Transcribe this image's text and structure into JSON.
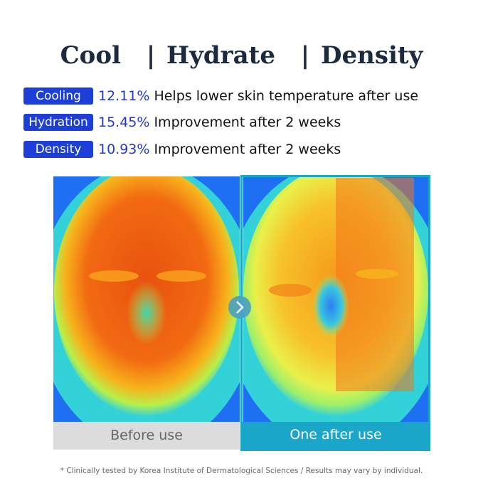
{
  "header": {
    "title": [
      "Cool",
      "| Hydrate",
      "| Density"
    ]
  },
  "claims": [
    {
      "badge": "Cooling",
      "value": "12.11%",
      "text": "Helps lower skin temperature after use"
    },
    {
      "badge": "Hydration",
      "value": "15.45%",
      "text": "Improvement after 2 weeks"
    },
    {
      "badge": "Density",
      "value": "10.93%",
      "text": "Improvement after 2 weeks"
    }
  ],
  "panels": [
    {
      "caption": "Before use"
    },
    {
      "caption": "One after use"
    }
  ],
  "footnote": "* Clinically tested by Korea Institute of Dermatological Sciences / Results may vary by individual."
}
